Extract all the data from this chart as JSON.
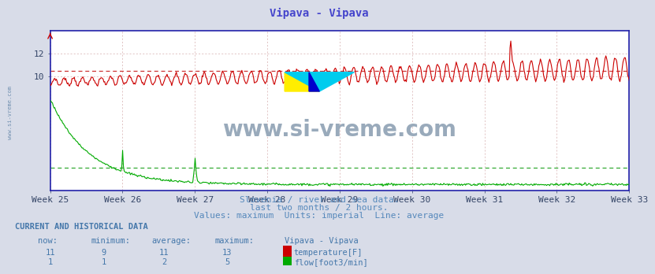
{
  "title": "Vipava - Vipava",
  "title_color": "#4444cc",
  "bg_color": "#d8dce8",
  "plot_bg_color": "#ffffff",
  "x_weeks": [
    "Week 25",
    "Week 26",
    "Week 27",
    "Week 28",
    "Week 29",
    "Week 30",
    "Week 31",
    "Week 32",
    "Week 33"
  ],
  "y_ticks": [
    10,
    12
  ],
  "y_min": 0.0,
  "y_max": 14.0,
  "temp_avg": 10.5,
  "flow_avg": 2.0,
  "temp_color": "#cc0000",
  "flow_color": "#00aa00",
  "avg_temp_color": "#cc3333",
  "avg_flow_color": "#33aa33",
  "n_points": 744,
  "subtitle1": "Slovenia / river and sea data.",
  "subtitle2": "last two months / 2 hours.",
  "subtitle3": "Values: maximum  Units: imperial  Line: average",
  "subtitle_color": "#5588bb",
  "table_header": "CURRENT AND HISTORICAL DATA",
  "table_color": "#4477aa",
  "watermark": "www.si-vreme.com",
  "watermark_color": "#99aabb",
  "grid_color_h": "#cc9999",
  "grid_color_v": "#cc9999",
  "axis_color": "#2222aa",
  "tick_color": "#334466"
}
